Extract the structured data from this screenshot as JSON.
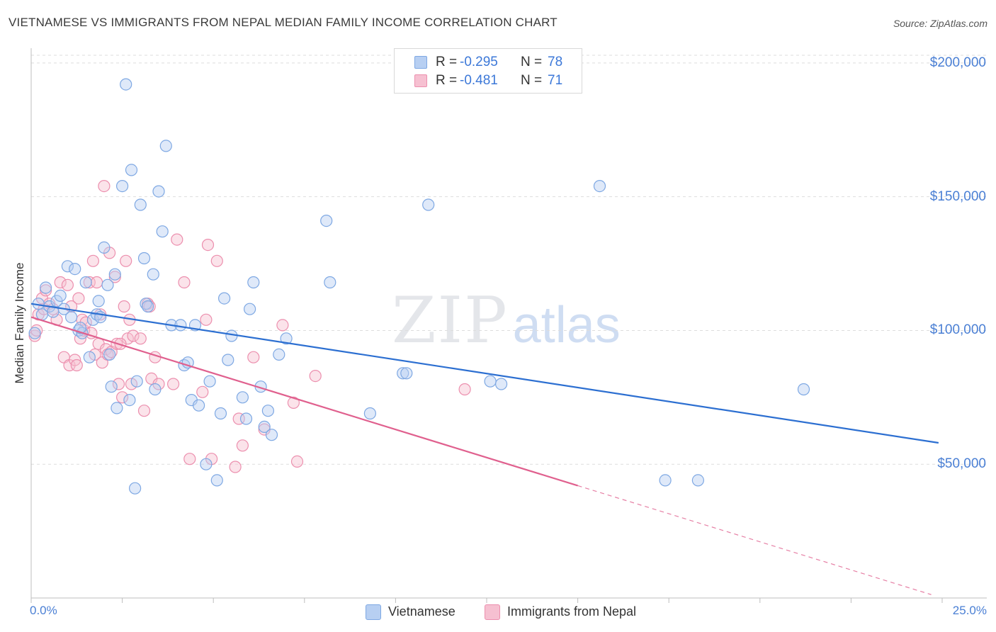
{
  "title": "VIETNAMESE VS IMMIGRANTS FROM NEPAL MEDIAN FAMILY INCOME CORRELATION CHART",
  "source": "Source: ZipAtlas.com",
  "watermark": {
    "zip": "ZIP",
    "atlas": "atlas"
  },
  "colors": {
    "blue_fill": "#b7cff2",
    "blue_stroke": "#7ea8e3",
    "blue_line": "#2c6fd1",
    "pink_fill": "#f6c0d1",
    "pink_stroke": "#ec8fae",
    "pink_line": "#e0608e",
    "grid": "#dddddd",
    "tick_text": "#4a7fd4"
  },
  "stats": [
    {
      "r_label": "R =",
      "r_value": "-0.295",
      "n_label": "N =",
      "n_value": "78"
    },
    {
      "r_label": "R =",
      "r_value": "-0.481",
      "n_label": "N =",
      "n_value": "71"
    }
  ],
  "legend": [
    {
      "label": "Vietnamese"
    },
    {
      "label": "Immigrants from Nepal"
    }
  ],
  "chart_data": {
    "type": "scatter",
    "xlabel": "",
    "ylabel": "Median Family Income",
    "xlim": [
      0,
      25
    ],
    "ylim": [
      0,
      205000
    ],
    "x_tick_labels": [
      "0.0%",
      "25.0%"
    ],
    "y_ticks": [
      {
        "value": 200000,
        "label": "$200,000"
      },
      {
        "value": 150000,
        "label": "$150,000"
      },
      {
        "value": 100000,
        "label": "$100,000"
      },
      {
        "value": 50000,
        "label": "$50,000"
      }
    ],
    "grid": "horizontal dashed",
    "series": [
      {
        "name": "Vietnamese",
        "trend": {
          "x0": 0,
          "y0": 110000,
          "x1": 24.9,
          "y1": 58000,
          "dashed_from": null
        },
        "points": [
          [
            0.2,
            110000
          ],
          [
            0.4,
            116000
          ],
          [
            0.5,
            109000
          ],
          [
            0.6,
            107000
          ],
          [
            0.7,
            111000
          ],
          [
            0.8,
            113000
          ],
          [
            0.9,
            108000
          ],
          [
            1.0,
            124000
          ],
          [
            1.1,
            105000
          ],
          [
            1.2,
            123000
          ],
          [
            1.3,
            100000
          ],
          [
            1.4,
            99000
          ],
          [
            1.5,
            118000
          ],
          [
            1.6,
            90000
          ],
          [
            1.7,
            104000
          ],
          [
            1.8,
            106000
          ],
          [
            1.85,
            111000
          ],
          [
            1.9,
            105000
          ],
          [
            2.0,
            131000
          ],
          [
            2.1,
            117000
          ],
          [
            2.2,
            79000
          ],
          [
            2.3,
            121000
          ],
          [
            2.35,
            71000
          ],
          [
            2.5,
            154000
          ],
          [
            2.6,
            192000
          ],
          [
            2.7,
            74000
          ],
          [
            2.75,
            160000
          ],
          [
            2.85,
            41000
          ],
          [
            2.9,
            81000
          ],
          [
            3.0,
            147000
          ],
          [
            3.1,
            127000
          ],
          [
            3.15,
            110000
          ],
          [
            3.2,
            109000
          ],
          [
            3.35,
            121000
          ],
          [
            3.4,
            78000
          ],
          [
            3.5,
            152000
          ],
          [
            3.6,
            137000
          ],
          [
            3.7,
            169000
          ],
          [
            3.85,
            102000
          ],
          [
            4.1,
            102000
          ],
          [
            4.2,
            87000
          ],
          [
            4.3,
            88000
          ],
          [
            4.4,
            74000
          ],
          [
            4.5,
            102000
          ],
          [
            4.6,
            72000
          ],
          [
            4.8,
            50000
          ],
          [
            4.9,
            81000
          ],
          [
            5.1,
            44000
          ],
          [
            5.2,
            69000
          ],
          [
            5.3,
            112000
          ],
          [
            5.4,
            89000
          ],
          [
            5.5,
            98000
          ],
          [
            5.8,
            75000
          ],
          [
            5.9,
            67000
          ],
          [
            6.0,
            108000
          ],
          [
            6.1,
            118000
          ],
          [
            6.3,
            79000
          ],
          [
            6.4,
            64000
          ],
          [
            6.5,
            70000
          ],
          [
            6.6,
            61000
          ],
          [
            6.8,
            91000
          ],
          [
            7.0,
            97000
          ],
          [
            8.1,
            141000
          ],
          [
            8.2,
            118000
          ],
          [
            9.3,
            69000
          ],
          [
            10.2,
            84000
          ],
          [
            10.3,
            84000
          ],
          [
            10.9,
            147000
          ],
          [
            12.6,
            81000
          ],
          [
            12.9,
            80000
          ],
          [
            15.6,
            154000
          ],
          [
            17.4,
            44000
          ],
          [
            18.3,
            44000
          ],
          [
            21.2,
            78000
          ],
          [
            0.1,
            99000
          ],
          [
            0.3,
            106000
          ],
          [
            1.35,
            101000
          ],
          [
            2.15,
            91000
          ]
        ]
      },
      {
        "name": "Immigrants from Nepal",
        "trend": {
          "x0": 0,
          "y0": 105000,
          "x1": 15.0,
          "y1": 42000,
          "dashed_to": 24.7
        },
        "points": [
          [
            0.1,
            98000
          ],
          [
            0.2,
            106000
          ],
          [
            0.3,
            112000
          ],
          [
            0.4,
            115000
          ],
          [
            0.5,
            110000
          ],
          [
            0.6,
            108000
          ],
          [
            0.7,
            104000
          ],
          [
            0.8,
            118000
          ],
          [
            0.9,
            90000
          ],
          [
            1.0,
            117000
          ],
          [
            1.05,
            87000
          ],
          [
            1.1,
            109000
          ],
          [
            1.2,
            89000
          ],
          [
            1.3,
            112000
          ],
          [
            1.35,
            97000
          ],
          [
            1.4,
            104000
          ],
          [
            1.45,
            100000
          ],
          [
            1.5,
            103000
          ],
          [
            1.6,
            118000
          ],
          [
            1.65,
            99000
          ],
          [
            1.7,
            126000
          ],
          [
            1.75,
            91000
          ],
          [
            1.8,
            118000
          ],
          [
            1.85,
            95000
          ],
          [
            1.9,
            106000
          ],
          [
            1.95,
            88000
          ],
          [
            2.0,
            154000
          ],
          [
            2.05,
            93000
          ],
          [
            2.1,
            91000
          ],
          [
            2.15,
            129000
          ],
          [
            2.2,
            92000
          ],
          [
            2.3,
            120000
          ],
          [
            2.35,
            95000
          ],
          [
            2.4,
            80000
          ],
          [
            2.5,
            75000
          ],
          [
            2.55,
            109000
          ],
          [
            2.6,
            126000
          ],
          [
            2.65,
            97000
          ],
          [
            2.7,
            104000
          ],
          [
            2.75,
            80000
          ],
          [
            2.8,
            98000
          ],
          [
            3.0,
            97000
          ],
          [
            3.1,
            70000
          ],
          [
            3.2,
            110000
          ],
          [
            3.25,
            109000
          ],
          [
            3.3,
            82000
          ],
          [
            3.4,
            90000
          ],
          [
            3.5,
            80000
          ],
          [
            3.9,
            80000
          ],
          [
            4.0,
            134000
          ],
          [
            4.2,
            118000
          ],
          [
            4.35,
            52000
          ],
          [
            4.7,
            77000
          ],
          [
            4.8,
            104000
          ],
          [
            4.85,
            132000
          ],
          [
            4.95,
            52000
          ],
          [
            5.1,
            126000
          ],
          [
            5.6,
            49000
          ],
          [
            5.7,
            67000
          ],
          [
            5.8,
            57000
          ],
          [
            6.1,
            90000
          ],
          [
            6.4,
            63000
          ],
          [
            6.9,
            102000
          ],
          [
            7.2,
            73000
          ],
          [
            7.3,
            51000
          ],
          [
            7.8,
            83000
          ],
          [
            11.9,
            78000
          ],
          [
            0.15,
            100000
          ],
          [
            0.35,
            108000
          ],
          [
            1.25,
            87000
          ],
          [
            2.45,
            95000
          ]
        ]
      }
    ]
  }
}
